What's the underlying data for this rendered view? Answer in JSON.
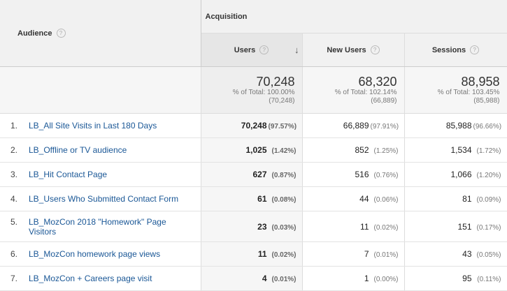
{
  "header": {
    "dimension_label": "Audience",
    "group_label": "Acquisition",
    "metrics": [
      {
        "label": "Users",
        "sorted": true
      },
      {
        "label": "New Users",
        "sorted": false
      },
      {
        "label": "Sessions",
        "sorted": false
      }
    ],
    "help_glyph": "?",
    "sort_glyph": "↓"
  },
  "totals": [
    {
      "value": "70,248",
      "line1": "% of Total: 100.00%",
      "line2": "(70,248)"
    },
    {
      "value": "68,320",
      "line1": "% of Total: 102.14%",
      "line2": "(66,889)"
    },
    {
      "value": "88,958",
      "line1": "% of Total: 103.45%",
      "line2": "(85,988)"
    }
  ],
  "rows": [
    {
      "index": "1.",
      "label": "LB_All Site Visits in Last 180 Days",
      "cells": [
        {
          "v": "70,248",
          "p": "(97.57%)"
        },
        {
          "v": "66,889",
          "p": "(97.91%)"
        },
        {
          "v": "85,988",
          "p": "(96.66%)"
        }
      ]
    },
    {
      "index": "2.",
      "label": "LB_Offline or TV audience",
      "cells": [
        {
          "v": "1,025",
          "p": "(1.42%)"
        },
        {
          "v": "852",
          "p": "(1.25%)"
        },
        {
          "v": "1,534",
          "p": "(1.72%)"
        }
      ]
    },
    {
      "index": "3.",
      "label": "LB_Hit Contact Page",
      "cells": [
        {
          "v": "627",
          "p": "(0.87%)"
        },
        {
          "v": "516",
          "p": "(0.76%)"
        },
        {
          "v": "1,066",
          "p": "(1.20%)"
        }
      ]
    },
    {
      "index": "4.",
      "label": "LB_Users Who Submitted Contact Form",
      "cells": [
        {
          "v": "61",
          "p": "(0.08%)"
        },
        {
          "v": "44",
          "p": "(0.06%)"
        },
        {
          "v": "81",
          "p": "(0.09%)"
        }
      ]
    },
    {
      "index": "5.",
      "label": "LB_MozCon 2018 \"Homework\" Page Visitors",
      "cells": [
        {
          "v": "23",
          "p": "(0.03%)"
        },
        {
          "v": "11",
          "p": "(0.02%)"
        },
        {
          "v": "151",
          "p": "(0.17%)"
        }
      ]
    },
    {
      "index": "6.",
      "label": "LB_MozCon homework page views",
      "cells": [
        {
          "v": "11",
          "p": "(0.02%)"
        },
        {
          "v": "7",
          "p": "(0.01%)"
        },
        {
          "v": "43",
          "p": "(0.05%)"
        }
      ]
    },
    {
      "index": "7.",
      "label": "LB_MozCon + Careers page visit",
      "cells": [
        {
          "v": "4",
          "p": "(0.01%)"
        },
        {
          "v": "1",
          "p": "(0.00%)"
        },
        {
          "v": "95",
          "p": "(0.11%)"
        }
      ]
    }
  ]
}
